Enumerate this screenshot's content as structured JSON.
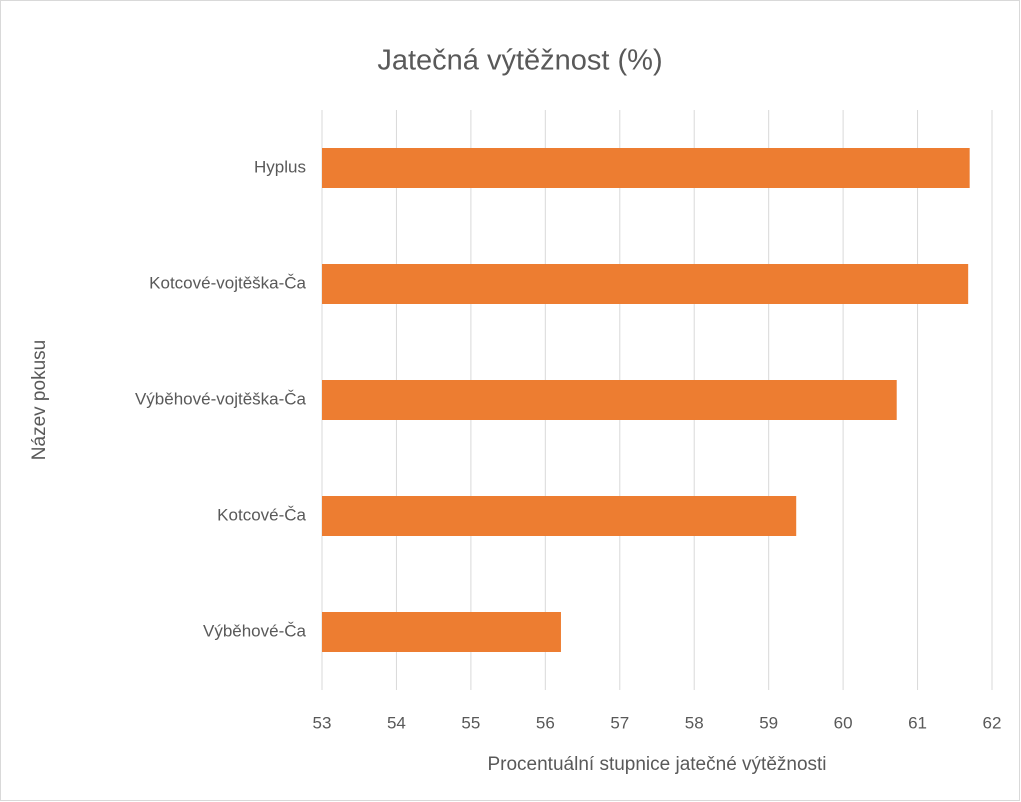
{
  "chart_data": {
    "type": "barh",
    "title": "Jatečná výtěžnost (%)",
    "xlabel": "Procentuální stupnice jatečné výtěžnosti",
    "ylabel": "Název pokusu",
    "categories": [
      "Hyplus",
      "Kotcové-vojtěška-Ča",
      "Výběhové-vojtěška-Ča",
      "Kotcové-Ča",
      "Výběhové-Ča"
    ],
    "values": [
      61.7,
      61.68,
      60.72,
      59.37,
      56.21
    ],
    "color": "#ed7d31",
    "xlim": [
      53,
      62
    ],
    "xticks": [
      53,
      54,
      55,
      56,
      57,
      58,
      59,
      60,
      61,
      62
    ],
    "grid": true
  }
}
